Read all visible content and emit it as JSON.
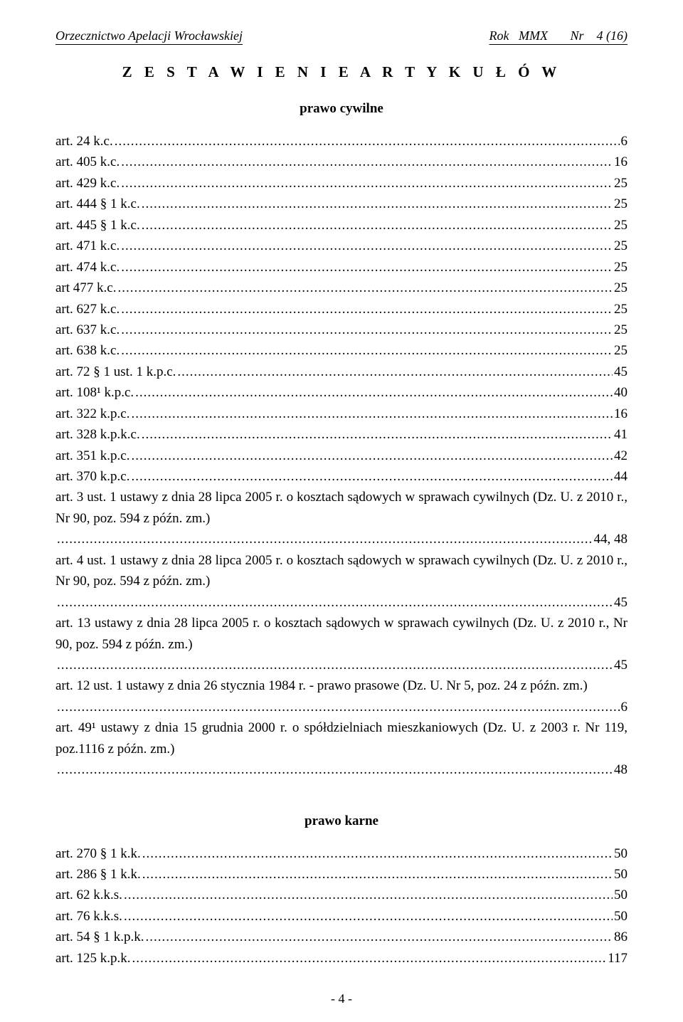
{
  "header": {
    "left": "Orzecznictwo Apelacji Wrocławskiej",
    "right": "Rok   MMX       Nr    4 (16)"
  },
  "title": "Z E S T A W I E N I E   A R T Y K U Ł Ó W",
  "section1_heading": "prawo cywilne",
  "civil": [
    {
      "label": "art. 24 k.c. ",
      "page": " 6"
    },
    {
      "label": "art. 405 k.c. ",
      "page": " 16"
    },
    {
      "label": "art. 429 k.c. ",
      "page": " 25"
    },
    {
      "label": "art. 444 § 1 k.c. ",
      "page": " 25"
    },
    {
      "label": "art. 445 § 1 k.c. ",
      "page": " 25"
    },
    {
      "label": "art. 471 k.c. ",
      "page": " 25"
    },
    {
      "label": "art. 474 k.c. ",
      "page": "25"
    },
    {
      "label": "art 477 k.c. ",
      "page": "25"
    },
    {
      "label": "art. 627 k.c. ",
      "page": " 25"
    },
    {
      "label": "art. 637 k.c. ",
      "page": " 25"
    },
    {
      "label": "art. 638 k.c. ",
      "page": " 25"
    },
    {
      "label": "art. 72 § 1 ust. 1 k.p.c. ",
      "page": " 45"
    },
    {
      "label": "art. 108¹ k.p.c. ",
      "page": "40"
    },
    {
      "label": "art. 322 k.p.c. ",
      "page": " 16"
    },
    {
      "label": "art. 328 k.p.k.c. ",
      "page": " 41"
    },
    {
      "label": "art. 351 k.p.c. ",
      "page": " 42"
    },
    {
      "label": "art. 370 k.p.c. ",
      "page": " 44"
    }
  ],
  "civil_paras": [
    {
      "text_before": "art. 3 ust. 1 ustawy z dnia 28 lipca 2005 r. o kosztach sądowych w sprawach cywilnych (Dz. U. z 2010 r., Nr 90, poz. 594 z późn. zm.)",
      "page": " 44, 48"
    },
    {
      "text_before": "art. 4 ust. 1 ustawy z dnia 28 lipca 2005 r. o kosztach sądowych w sprawach cywilnych (Dz. U. z 2010 r., Nr 90, poz. 594 z późn. zm.)",
      "page": " 45"
    },
    {
      "text_before": "art. 13 ustawy z dnia 28 lipca 2005 r. o kosztach sądowych w sprawach cywilnych (Dz. U. z 2010 r., Nr 90, poz. 594 z późn. zm.)",
      "page": " 45"
    },
    {
      "text_before": "art. 12 ust. 1 ustawy z dnia 26 stycznia 1984 r. - prawo prasowe (Dz. U. Nr 5, poz. 24 z późn. zm.)",
      "page": " 6",
      "full_line_dots": true
    },
    {
      "text_before": "art. 49¹ ustawy z dnia 15 grudnia 2000 r. o spółdzielniach mieszkaniowych (Dz. U. z 2003 r. Nr 119, poz.1116 z późn. zm.)",
      "page": "48"
    }
  ],
  "section2_heading": "prawo karne",
  "penal": [
    {
      "label": "art. 270 § 1 k.k.",
      "page": "50"
    },
    {
      "label": "art. 286 § 1 k.k.",
      "page": "50"
    },
    {
      "label": "art. 62 k.k.s. ",
      "page": " 50"
    },
    {
      "label": "art. 76 k.k.s. ",
      "page": " 50"
    },
    {
      "label": "art. 54 § 1 k.p.k.",
      "page": "86"
    },
    {
      "label": "art. 125 k.p.k.",
      "page": "117"
    }
  ],
  "page_number": "- 4 -"
}
